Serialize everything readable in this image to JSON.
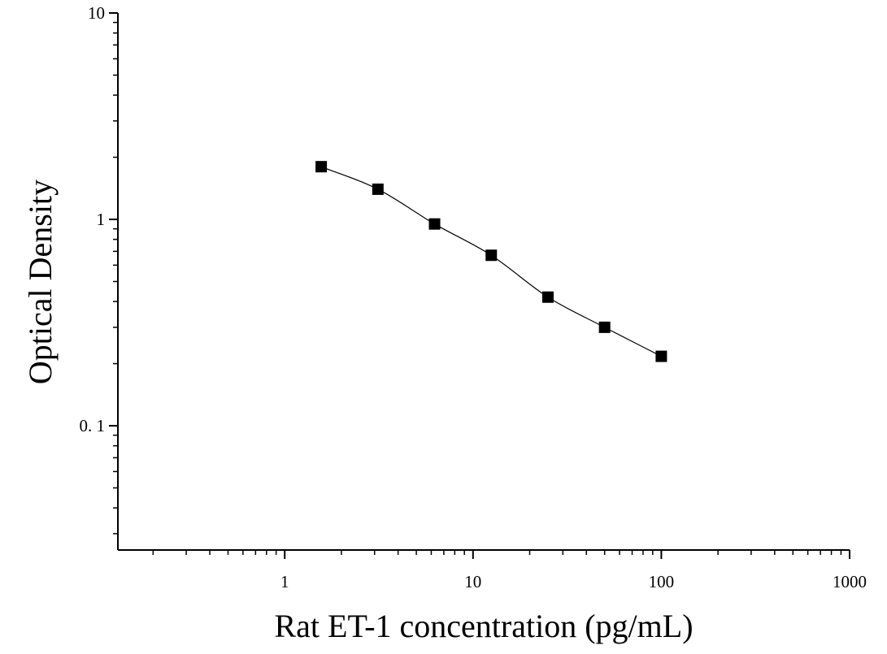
{
  "chart_data": {
    "type": "scatter",
    "title": "",
    "xlabel": "Rat ET-1 concentration (pg/mL)",
    "ylabel": "Optical Density",
    "x_scale": "log",
    "y_scale": "log",
    "xlim": [
      0.13,
      1000
    ],
    "ylim": [
      0.025,
      10
    ],
    "x_ticks": [
      {
        "value": 1,
        "label": "1"
      },
      {
        "value": 10,
        "label": "10"
      },
      {
        "value": 100,
        "label": "100"
      },
      {
        "value": 1000,
        "label": "1000"
      }
    ],
    "y_ticks": [
      {
        "value": 0.1,
        "label": "0. 1"
      },
      {
        "value": 1,
        "label": "1"
      },
      {
        "value": 10,
        "label": "10"
      }
    ],
    "grid": false,
    "series": [
      {
        "marker": "square",
        "color": "#000000",
        "points": [
          {
            "x": 1.5625,
            "y": 1.8
          },
          {
            "x": 3.125,
            "y": 1.4
          },
          {
            "x": 6.25,
            "y": 0.95
          },
          {
            "x": 12.5,
            "y": 0.67
          },
          {
            "x": 25,
            "y": 0.42
          },
          {
            "x": 50,
            "y": 0.3
          },
          {
            "x": 100,
            "y": 0.217
          }
        ],
        "fit_curve": true
      }
    ]
  }
}
